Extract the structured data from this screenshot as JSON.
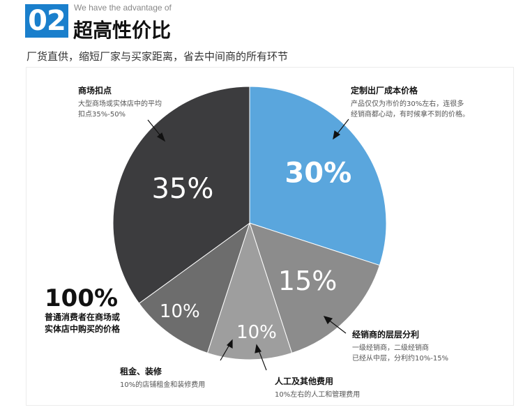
{
  "header": {
    "number": "02",
    "subtitle_en": "We have the advantage of",
    "title": "超高性价比",
    "tagline": "厂货直供，缩短厂家与买家距离，省去中间商的所有环节"
  },
  "annotations": {
    "retail_margin": {
      "title": "商场扣点",
      "line1": "大型商场或实体店中的平均",
      "line2": "扣点35%-50%"
    },
    "factory_cost": {
      "title": "定制出厂成本价格",
      "line1": "产品仅仅为市价的30%左右，连很多",
      "line2": "经销商都心动，有时候拿不到的价格。"
    },
    "dealer_layers": {
      "title": "经销商的层层分利",
      "line1": "一级经销商，二级经销商",
      "line2": "已经从中层，分利约10%-15%"
    },
    "rent": {
      "title": "租金、装修",
      "line1": "10%的店铺租金和装修费用"
    },
    "labor": {
      "title": "人工及其他费用",
      "line1": "10%左右的人工和管理费用"
    },
    "consumer": {
      "value": "100%",
      "line1": "普通消费者在商场或",
      "line2": "实体店中购买的价格"
    }
  },
  "colors": {
    "blue": "#5aa6dd",
    "dark": "#3a3a3c",
    "gray": "#8c8c8c",
    "mid": "#9c9c9c",
    "darkmid": "#6a6a6a",
    "badge": "#1a7fcc"
  },
  "chart_data": {
    "type": "pie",
    "slices": [
      {
        "label": "30%",
        "value": 30,
        "color": "#5aa6dd",
        "label_bold": true
      },
      {
        "label": "15%",
        "value": 15,
        "color": "#8c8c8c",
        "label_bold": false
      },
      {
        "label": "10%",
        "value": 10,
        "color": "#9e9e9e",
        "label_bold": false
      },
      {
        "label": "10%",
        "value": 10,
        "color": "#6d6d6d",
        "label_bold": false
      },
      {
        "label": "35%",
        "value": 35,
        "color": "#3c3c3e",
        "label_bold": false
      }
    ]
  }
}
